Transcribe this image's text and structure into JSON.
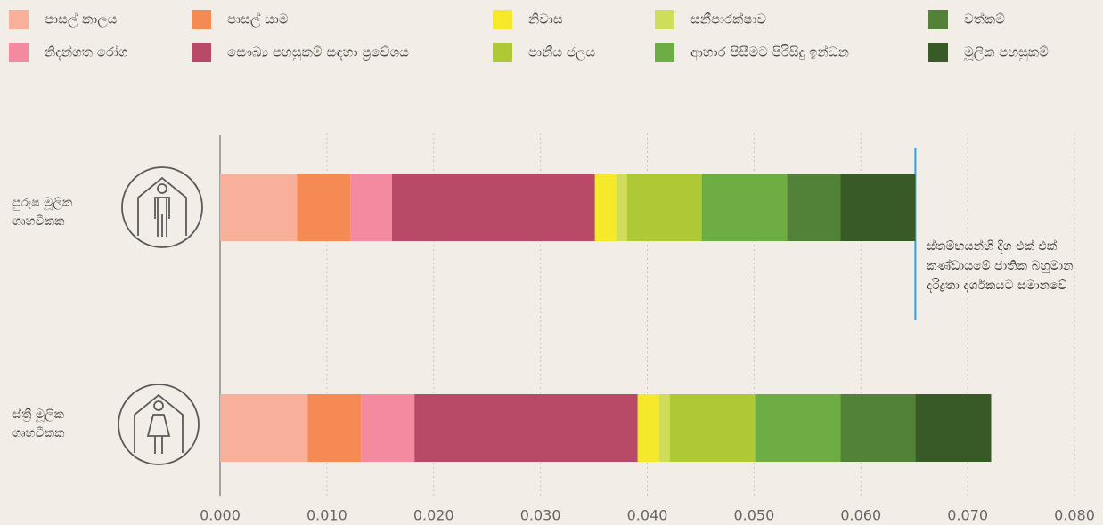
{
  "chart_data": {
    "type": "stacked-barh",
    "categories": [
      "පුරුෂ මූලික ගෘහවීකක",
      "ස්ත්‍රී මූලික ගෘහවීකක"
    ],
    "series": [
      {
        "name": "පාසල් කාලය",
        "color": "#f9b09a",
        "values": [
          0.0072,
          0.0082
        ]
      },
      {
        "name": "පාසල් යාම",
        "color": "#f58a55",
        "values": [
          0.005,
          0.005
        ]
      },
      {
        "name": "නිදන්ගත රෝග",
        "color": "#f48aa0",
        "values": [
          0.0039,
          0.005
        ]
      },
      {
        "name": "සෞඛ්‍ය පහසුකම් සඳහා ප්‍රවේශය",
        "color": "#b84a67",
        "values": [
          0.019,
          0.0209
        ]
      },
      {
        "name": "නිවාස",
        "color": "#f6e82b",
        "values": [
          0.002,
          0.002
        ]
      },
      {
        "name": "සනීපාරක්ෂාව",
        "color": "#cfdd5a",
        "values": [
          0.001,
          0.001
        ]
      },
      {
        "name": "පානීය ජලය",
        "color": "#aec935",
        "values": [
          0.007,
          0.008
        ]
      },
      {
        "name": "ආහාර පිසීමට පිරිසිදු ඉන්ධන",
        "color": "#6ead43",
        "values": [
          0.008,
          0.008
        ]
      },
      {
        "name": "වත්කම්",
        "color": "#528237",
        "values": [
          0.005,
          0.007
        ]
      },
      {
        "name": "මූලික පහසුකම්",
        "color": "#385a27",
        "values": [
          0.007,
          0.0071
        ]
      }
    ],
    "xlim": [
      0,
      0.08
    ],
    "xticks": [
      {
        "value": 0,
        "label": "0.000"
      },
      {
        "value": 0.01,
        "label": "0.010"
      },
      {
        "value": 0.02,
        "label": "0.020"
      },
      {
        "value": 0.03,
        "label": "0.030"
      },
      {
        "value": 0.04,
        "label": "0.040"
      },
      {
        "value": 0.05,
        "label": "0.050"
      },
      {
        "value": 0.06,
        "label": "0.060"
      },
      {
        "value": 0.07,
        "label": "0.070"
      },
      {
        "value": 0.08,
        "label": "0.080"
      }
    ],
    "grid": true,
    "annotation": "ස්තම්භයන්හි දිග එක් එක් කණ්ඩායමේ ජාතික බහුමාන දරිද්‍රතා දර්ශකයට සමානවේ"
  }
}
